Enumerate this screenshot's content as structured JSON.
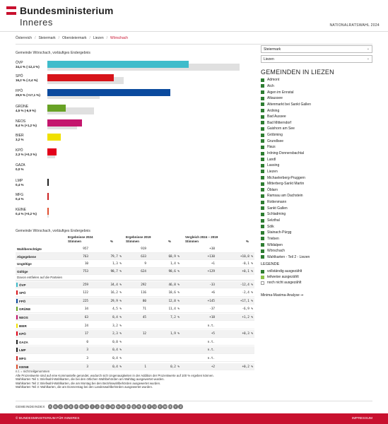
{
  "header": {
    "title": "Bundesministerium",
    "subtitle": "Inneres",
    "election": "NATIONALRATSWAHL 2024",
    "flag_colors": [
      "#c8102e",
      "#ffffff",
      "#c8102e"
    ]
  },
  "breadcrumb": [
    "Österreich",
    "Steiermark",
    "Obersteiermark",
    "Liezen",
    "Wörschach"
  ],
  "chart": {
    "title": "Gemeinde Wörschach, vorläufiges Endergebnis"
  },
  "chart_data": {
    "type": "bar",
    "orientation": "horizontal",
    "title": "Gemeinde Wörschach, vorläufiges Endergebnis",
    "xlim": [
      0,
      50
    ],
    "categories": [
      "ÖVP",
      "SPÖ",
      "FPÖ",
      "GRÜNE",
      "NEOS",
      "BIER",
      "KPÖ",
      "GAZA",
      "LMP",
      "MFG",
      "KEINE"
    ],
    "labels": [
      "34,4 % (-12,4 %)",
      "16,2 % (-2,4 %)",
      "29,9 % (+17,1 %)",
      "4,5 % (-6,9 %)",
      "8,4 % (+1,2 %)",
      "3,2 %",
      "2,3 % (+0,3 %)",
      "0,0 %",
      "0,4 %",
      "0,4 %",
      "0,4 % (+0,2 %)"
    ],
    "colors": [
      "#3fbccb",
      "#d7141a",
      "#0b4a9e",
      "#68a225",
      "#c4166d",
      "#f0e000",
      "#e2001a",
      "#222222",
      "#222222",
      "#cc2222",
      "#e05030"
    ],
    "series": [
      {
        "name": "2024",
        "values": [
          34.4,
          16.2,
          29.9,
          4.5,
          8.4,
          3.2,
          2.3,
          0.0,
          0.4,
          0.4,
          0.4
        ]
      },
      {
        "name": "2019",
        "values": [
          46.8,
          18.6,
          12.8,
          11.4,
          7.2,
          null,
          1.9,
          null,
          null,
          null,
          0.2
        ]
      }
    ]
  },
  "sidebar": {
    "select_state": "Steiermark",
    "select_district": "Liezen",
    "gemeinden_title": "GEMEINDEN IN LIEZEN",
    "gemeinden": [
      "Admont",
      "Aich",
      "Aigen im Ennstal",
      "Altaussee",
      "Altenmarkt bei Sankt Gallen",
      "Ardning",
      "Bad Aussee",
      "Bad Mitterndorf",
      "Gaishorn am See",
      "Gröbming",
      "Grundlsee",
      "Haus",
      "Irdning-Donnersbachtal",
      "Landl",
      "Lassing",
      "Liezen",
      "Michaelerberg-Pruggern",
      "Mitterberg-Sankt Martin",
      "Öblarn",
      "Ramsau am Dachstein",
      "Rottenmann",
      "Sankt Gallen",
      "Schladming",
      "Selzthal",
      "Sölk",
      "Stainach-Pürgg",
      "Trieben",
      "Wildalpen",
      "Wörschach",
      "Wahlkarten - Teil 2 - Liezen"
    ],
    "gem_colors": {
      "complete": "#2e7d32",
      "partial": "#8bc34a",
      "none": "#ffffff"
    },
    "legend_title": "LEGENDE",
    "legend": [
      "vollständig ausgezählt",
      "teilweise ausgezählt",
      "noch nicht ausgezählt"
    ],
    "minima": "Minima-Maxima-Analyse"
  },
  "table": {
    "title": "Gemeinde Wörschach, vorläufiges Endergebnis",
    "h2024": "Ergebnisse 2024",
    "h2019": "Ergebnisse 2019",
    "hcmp": "Vergleich 2024 – 2019",
    "stimmen": "Stimmen",
    "pct": "%",
    "general": [
      {
        "label": "Wahlberechtigte",
        "s24": "957",
        "p24": "",
        "s19": "919",
        "p19": "",
        "d": "+38",
        "dp": ""
      },
      {
        "label": "Abgegebene",
        "s24": "763",
        "p24": "79,7 %",
        "s19": "633",
        "p19": "68,9 %",
        "d": "+130",
        "dp": "+10,8 %"
      },
      {
        "label": "Ungültige",
        "s24": "10",
        "p24": "1,3 %",
        "s19": "9",
        "p19": "1,4 %",
        "d": "+1",
        "dp": "-0,1 %"
      },
      {
        "label": "Gültige",
        "s24": "753",
        "p24": "98,7 %",
        "s19": "624",
        "p19": "98,6 %",
        "d": "+129",
        "dp": "+0,1 %"
      }
    ],
    "subhead": "Davon entfielen auf die Parteien",
    "parties": [
      {
        "label": "ÖVP",
        "color": "#3fbccb",
        "s24": "259",
        "p24": "34,4 %",
        "s19": "292",
        "p19": "46,8 %",
        "d": "-33",
        "dp": "-12,4 %"
      },
      {
        "label": "SPÖ",
        "color": "#d7141a",
        "s24": "122",
        "p24": "16,2 %",
        "s19": "116",
        "p19": "18,6 %",
        "d": "+6",
        "dp": "-2,4 %"
      },
      {
        "label": "FPÖ",
        "color": "#0b4a9e",
        "s24": "225",
        "p24": "29,9 %",
        "s19": "80",
        "p19": "12,8 %",
        "d": "+145",
        "dp": "+17,1 %"
      },
      {
        "label": "GRÜNE",
        "color": "#68a225",
        "s24": "34",
        "p24": "4,5 %",
        "s19": "71",
        "p19": "11,4 %",
        "d": "-37",
        "dp": "-6,9 %"
      },
      {
        "label": "NEOS",
        "color": "#c4166d",
        "s24": "63",
        "p24": "8,4 %",
        "s19": "45",
        "p19": "7,2 %",
        "d": "+18",
        "dp": "+1,2 %"
      },
      {
        "label": "BIER",
        "color": "#f0e000",
        "s24": "24",
        "p24": "3,2 %",
        "s19": "",
        "p19": "",
        "d": "n.t.",
        "dp": ""
      },
      {
        "label": "KPÖ",
        "color": "#e2001a",
        "s24": "17",
        "p24": "2,3 %",
        "s19": "12",
        "p19": "1,9 %",
        "d": "+5",
        "dp": "+0,3 %"
      },
      {
        "label": "GAZA",
        "color": "#222222",
        "s24": "0",
        "p24": "0,0 %",
        "s19": "",
        "p19": "",
        "d": "n.t.",
        "dp": ""
      },
      {
        "label": "LMP",
        "color": "#222222",
        "s24": "3",
        "p24": "0,4 %",
        "s19": "",
        "p19": "",
        "d": "n.t.",
        "dp": ""
      },
      {
        "label": "MFG",
        "color": "#cc2222",
        "s24": "3",
        "p24": "0,4 %",
        "s19": "",
        "p19": "",
        "d": "n.t.",
        "dp": ""
      },
      {
        "label": "KEINE",
        "color": "#e05030",
        "s24": "3",
        "p24": "0,4 %",
        "s19": "1",
        "p19": "0,2 %",
        "d": "+2",
        "dp": "+0,2 %"
      }
    ]
  },
  "notes": [
    "n.t. = nicht teilgenommen",
    "Alle Prozentwerte sind auf eine Kommastelle gerundet, wodurch sich Ungenauigkeiten in der Addition der Prozentwerte auf 100 % ergeben können.",
    "Wahlkarten Teil 1: Briefwahl-Wahlkarten, die bei den örtlichen Wahlbehörden am Wahltag ausgewertet wurden.",
    "Wahlkarten Teil 2: Briefwahl-Wahlkarten, die am Montag bei den Bezirkswahlbehörden ausgewertet wurden.",
    "Wahlkarten Teil 3: Wahlkarten, die am Donnerstag bei den Landeswahlbehörden ausgewertet wurden."
  ],
  "gemindex": {
    "label": "GEMEINDEINDEX",
    "letters": [
      "A",
      "B",
      "C",
      "D",
      "E",
      "F",
      "G",
      "H",
      "I",
      "J",
      "K",
      "L",
      "M",
      "N",
      "O",
      "P",
      "Q",
      "R",
      "S",
      "T",
      "U",
      "V",
      "W",
      "X",
      "Y",
      "Z"
    ]
  },
  "footer": {
    "left": "© BUNDESMINISTERIUM FÜR INNERES",
    "right": "IMPRESSUM"
  }
}
